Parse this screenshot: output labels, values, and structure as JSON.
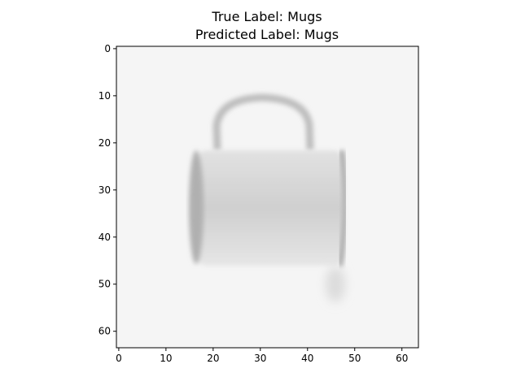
{
  "figure": {
    "title_line1": "True Label: Mugs",
    "title_line2": "Predicted Label: Mugs"
  },
  "chart_data": {
    "type": "heatmap",
    "title": "True Label: Mugs\nPredicted Label: Mugs",
    "xlabel": "",
    "ylabel": "",
    "xlim": [
      -0.5,
      63.5
    ],
    "ylim": [
      63.5,
      -0.5
    ],
    "image_size": [
      64,
      64
    ],
    "colormap": "grayscale",
    "x_ticks": [
      0,
      10,
      20,
      30,
      40,
      50,
      60
    ],
    "y_ticks": [
      0,
      10,
      20,
      30,
      40,
      50,
      60
    ],
    "x_tick_labels": [
      "0",
      "10",
      "20",
      "30",
      "40",
      "50",
      "60"
    ],
    "y_tick_labels": [
      "0",
      "10",
      "20",
      "30",
      "40",
      "50",
      "60"
    ],
    "grid": false,
    "image_content": "blurred grayscale photo of a white mug with handle on top, light background",
    "colors": {
      "background": "#f5f5f5",
      "mug_body": "#d2d2d2",
      "mug_edge": "#a8a8a8"
    }
  }
}
